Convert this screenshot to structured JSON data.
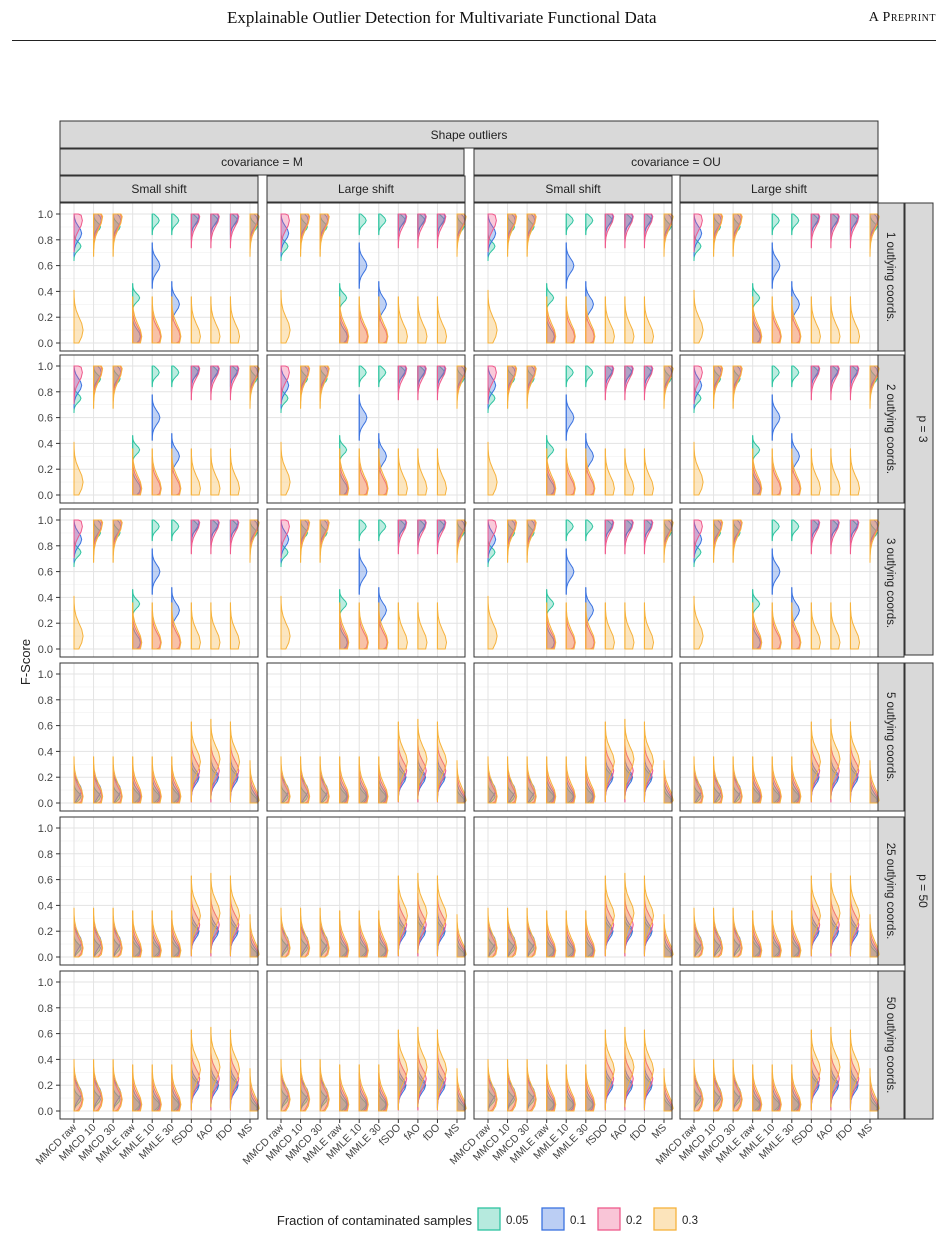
{
  "header": {
    "title": "Explainable Outlier Detection for Multivariate Functional Data",
    "right_label": "A Preprint"
  },
  "chart_data": {
    "type": "violin",
    "title": "",
    "ylabel": "F-Score",
    "xlabel": "",
    "ylim": [
      0,
      1.0
    ],
    "yticks": [
      0.0,
      0.2,
      0.4,
      0.6,
      0.8,
      1.0
    ],
    "grid": true,
    "top_strip": "Shape outliers",
    "covariance_strips": [
      "covariance = M",
      "covariance = OU"
    ],
    "shift_strips": [
      "Small shift",
      "Large shift",
      "Small shift",
      "Large shift"
    ],
    "row_strips": [
      "1 outlying coords.",
      "2 outlying coords.",
      "3 outlying coords.",
      "5 outlying coords.",
      "25 outlying coords.",
      "50 outlying coords."
    ],
    "p_strips": [
      "p = 3",
      "p = 50"
    ],
    "categories": [
      "MMCD raw",
      "MMCD 10",
      "MMCD 30",
      "MMLE raw",
      "MMLE 10",
      "MMLE 30",
      "fSDO",
      "fAO",
      "fDO",
      "MS"
    ],
    "legend": {
      "title": "Fraction of contaminated samples",
      "position": "bottom",
      "entries": [
        {
          "label": "0.05",
          "color": "#2ec4a0"
        },
        {
          "label": "0.1",
          "color": "#3b73e0"
        },
        {
          "label": "0.2",
          "color": "#ef5a8c"
        },
        {
          "label": "0.3",
          "color": "#f6b23c"
        }
      ]
    },
    "series_medians": {
      "p3": {
        "0.05": [
          0.75,
          0.9,
          0.9,
          0.35,
          0.95,
          0.95,
          0.95,
          0.95,
          0.95,
          0.9
        ],
        "0.1": [
          0.85,
          0.95,
          0.95,
          0.05,
          0.6,
          0.3,
          0.98,
          0.98,
          0.98,
          0.95
        ],
        "0.2": [
          0.95,
          0.97,
          0.97,
          0.05,
          0.05,
          0.05,
          0.98,
          0.98,
          0.98,
          0.97
        ],
        "0.3": [
          0.1,
          0.98,
          0.98,
          0.05,
          0.05,
          0.05,
          0.05,
          0.05,
          0.05,
          0.98
        ]
      },
      "p50": {
        "0.05": [
          0.05,
          0.05,
          0.05,
          0.05,
          0.05,
          0.05,
          0.2,
          0.2,
          0.2,
          0.02
        ],
        "0.1": [
          0.1,
          0.1,
          0.1,
          0.05,
          0.05,
          0.05,
          0.2,
          0.2,
          0.2,
          0.02
        ],
        "0.2": [
          0.05,
          0.05,
          0.05,
          0.05,
          0.05,
          0.05,
          0.25,
          0.25,
          0.25,
          0.02
        ],
        "0.3": [
          0.05,
          0.05,
          0.05,
          0.05,
          0.05,
          0.05,
          0.32,
          0.34,
          0.32,
          0.02
        ]
      }
    }
  }
}
